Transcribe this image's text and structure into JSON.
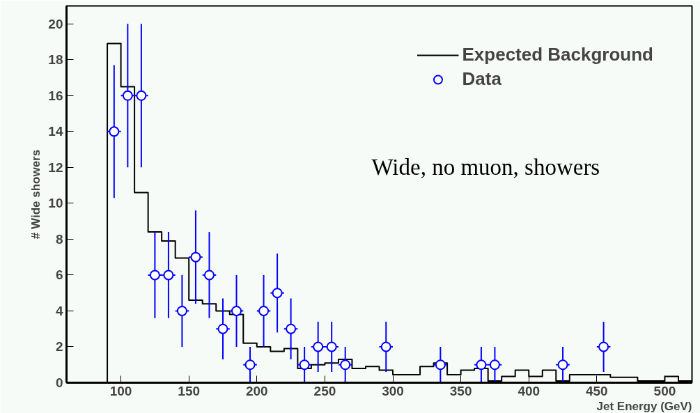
{
  "chart_data": {
    "type": "histogram",
    "xlabel": "Jet Energy (GeV)",
    "ylabel": "# Wide showers",
    "annotations": [
      "Wide, no muon, showers"
    ],
    "xlim": [
      60,
      520
    ],
    "ylim": [
      0,
      21
    ],
    "xticks": [
      100,
      150,
      200,
      250,
      300,
      350,
      400,
      450,
      500
    ],
    "yticks": [
      0,
      2,
      4,
      6,
      8,
      10,
      12,
      14,
      16,
      18,
      20
    ],
    "grid": false,
    "legend": "top right",
    "marker": "circle",
    "series": [
      {
        "name": "Expected Background",
        "color": "#000000",
        "bins": [
          90,
          100,
          110,
          120,
          130,
          140,
          150,
          160,
          170,
          180,
          190,
          200,
          210,
          220,
          230,
          240,
          250,
          260,
          270,
          280,
          290,
          300,
          310,
          320,
          330,
          340,
          350,
          360,
          370,
          380,
          390,
          400,
          410,
          420,
          430,
          440,
          450,
          460,
          470,
          480,
          490,
          500,
          510,
          520
        ],
        "values": [
          18.9,
          16.5,
          10.6,
          8.4,
          7.9,
          6.95,
          4.6,
          4.4,
          4.0,
          3.8,
          2.2,
          2.0,
          1.75,
          1.9,
          0.8,
          1.0,
          1.1,
          1.3,
          0.8,
          0.9,
          0.7,
          0.45,
          0.45,
          0.9,
          1.1,
          0.45,
          0.7,
          0.8,
          0.1,
          0.35,
          0.7,
          0.35,
          0.7,
          0.1,
          0.45,
          0.45,
          0.45,
          0.3,
          0.3,
          0.1,
          0.1,
          0.35,
          0.1
        ]
      },
      {
        "name": "Data",
        "type": "scatter",
        "color": "#0000ff",
        "x": [
          95,
          105,
          115,
          125,
          135,
          145,
          155,
          165,
          175,
          185,
          195,
          205,
          215,
          225,
          235,
          245,
          255,
          265,
          295,
          335,
          365,
          375,
          425,
          455
        ],
        "values": [
          14,
          16,
          16,
          6,
          6,
          4,
          7,
          6,
          3,
          4,
          1,
          4,
          5,
          3,
          1,
          2,
          2,
          1,
          2,
          1,
          1,
          1,
          1,
          2
        ],
        "errors": [
          3.7,
          4,
          4,
          2.4,
          2.4,
          2,
          2.6,
          2.4,
          1.7,
          2,
          1,
          2,
          2.2,
          1.7,
          1,
          1.4,
          1.4,
          1,
          1.4,
          1,
          1,
          1,
          1,
          1.4
        ],
        "xerrors": [
          5,
          5,
          5,
          5,
          5,
          5,
          5,
          5,
          5,
          5,
          5,
          5,
          5,
          5,
          5,
          5,
          5,
          5,
          5,
          5,
          5,
          5,
          5,
          5
        ]
      }
    ]
  }
}
